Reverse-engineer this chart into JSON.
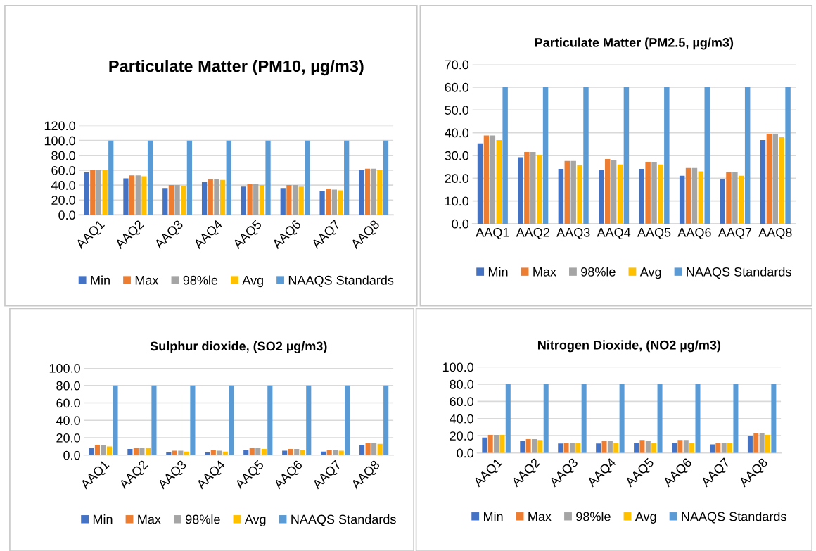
{
  "chart_data": [
    {
      "type": "bar",
      "title": "Particulate Matter (PM10, µg/m3)",
      "categories": [
        "AAQ1",
        "AAQ2",
        "AAQ3",
        "AAQ4",
        "AAQ5",
        "AAQ6",
        "AAQ7",
        "AAQ8"
      ],
      "series": [
        {
          "name": "Min",
          "color": "#4472c4",
          "values": [
            57,
            49,
            36,
            44,
            38,
            36,
            32,
            61
          ]
        },
        {
          "name": "Max",
          "color": "#ed7d31",
          "values": [
            61,
            53,
            40,
            48,
            41,
            40,
            35,
            62
          ]
        },
        {
          "name": "98%le",
          "color": "#a5a5a5",
          "values": [
            61,
            53,
            40,
            48,
            41,
            40,
            34,
            62
          ]
        },
        {
          "name": "Avg",
          "color": "#ffc000",
          "values": [
            60,
            52,
            39,
            47,
            40,
            38,
            33,
            61
          ]
        },
        {
          "name": "NAAQS Standards",
          "color": "#5b9bd5",
          "values": [
            100,
            100,
            100,
            100,
            100,
            100,
            100,
            100
          ]
        }
      ],
      "ylim": [
        0,
        120
      ],
      "yticks": [
        {
          "value": 0,
          "label": "0.0"
        },
        {
          "value": 20,
          "label": "20.0"
        },
        {
          "value": 40,
          "label": "40.0"
        },
        {
          "value": 60,
          "label": "60.0"
        },
        {
          "value": 80,
          "label": "80.0"
        },
        {
          "value": 100,
          "label": "100.0"
        },
        {
          "value": 120,
          "label": "120.0"
        }
      ],
      "grid": "y",
      "legend": "bottom"
    },
    {
      "type": "bar",
      "title": "Particulate Matter (PM2.5, µg/m3)",
      "categories": [
        "AAQ1",
        "AAQ2",
        "AAQ3",
        "AAQ4",
        "AAQ5",
        "AAQ6",
        "AAQ7",
        "AAQ8"
      ],
      "series": [
        {
          "name": "Min",
          "color": "#4472c4",
          "values": [
            35.3,
            29.2,
            24.1,
            23.8,
            24.1,
            21.1,
            19.6,
            36.8
          ]
        },
        {
          "name": "Max",
          "color": "#ed7d31",
          "values": [
            38.8,
            31.5,
            27.6,
            28.4,
            27.2,
            24.5,
            22.6,
            39.6
          ]
        },
        {
          "name": "98%le",
          "color": "#a5a5a5",
          "values": [
            38.8,
            31.5,
            27.6,
            28.0,
            27.2,
            24.5,
            22.6,
            39.6
          ]
        },
        {
          "name": "Avg",
          "color": "#ffc000",
          "values": [
            36.8,
            30.3,
            25.7,
            26.0,
            26.0,
            23.0,
            21.1,
            38.0
          ]
        },
        {
          "name": "NAAQS Standards",
          "color": "#5b9bd5",
          "values": [
            60,
            60,
            60,
            60,
            60,
            60,
            60,
            60
          ]
        }
      ],
      "ylim": [
        0,
        70
      ],
      "yticks": [
        {
          "value": 0,
          "label": "0.0"
        },
        {
          "value": 10,
          "label": "10.0"
        },
        {
          "value": 20,
          "label": "20.0"
        },
        {
          "value": 30,
          "label": "30.0"
        },
        {
          "value": 40,
          "label": "40.0"
        },
        {
          "value": 50,
          "label": "50.0"
        },
        {
          "value": 60,
          "label": "60.0"
        },
        {
          "value": 70,
          "label": "70.0"
        }
      ],
      "grid": "y",
      "legend": "bottom"
    },
    {
      "type": "bar",
      "title": "Sulphur dioxide, (SO2 µg/m3)",
      "categories": [
        "AAQ1",
        "AAQ2",
        "AAQ3",
        "AAQ4",
        "AAQ5",
        "AAQ6",
        "AAQ7",
        "AAQ8"
      ],
      "series": [
        {
          "name": "Min",
          "color": "#4472c4",
          "values": [
            8,
            7,
            3,
            3,
            6,
            5,
            4,
            12
          ]
        },
        {
          "name": "Max",
          "color": "#ed7d31",
          "values": [
            12,
            8,
            5,
            6,
            8,
            7,
            6,
            14
          ]
        },
        {
          "name": "98%le",
          "color": "#a5a5a5",
          "values": [
            12,
            8,
            5,
            5,
            8,
            7,
            6,
            14
          ]
        },
        {
          "name": "Avg",
          "color": "#ffc000",
          "values": [
            10,
            8,
            4,
            4,
            7,
            6,
            5,
            13
          ]
        },
        {
          "name": "NAAQS Standards",
          "color": "#5b9bd5",
          "values": [
            80,
            80,
            80,
            80,
            80,
            80,
            80,
            80
          ]
        }
      ],
      "ylim": [
        0,
        100
      ],
      "yticks": [
        {
          "value": 0,
          "label": "0.0"
        },
        {
          "value": 20,
          "label": "20.0"
        },
        {
          "value": 40,
          "label": "40.0"
        },
        {
          "value": 60,
          "label": "60.0"
        },
        {
          "value": 80,
          "label": "80.0"
        },
        {
          "value": 100,
          "label": "100.0"
        }
      ],
      "grid": "y",
      "legend": "bottom"
    },
    {
      "type": "bar",
      "title": "Nitrogen Dioxide, (NO2 µg/m3)",
      "categories": [
        "AAQ1",
        "AAQ2",
        "AAQ3",
        "AAQ4",
        "AAQ5",
        "AAQ6",
        "AAQ7",
        "AAQ8"
      ],
      "series": [
        {
          "name": "Min",
          "color": "#4472c4",
          "values": [
            18,
            14,
            11,
            11,
            12,
            12,
            10,
            20
          ]
        },
        {
          "name": "Max",
          "color": "#ed7d31",
          "values": [
            21,
            16,
            12,
            14,
            15,
            15,
            12,
            23
          ]
        },
        {
          "name": "98%le",
          "color": "#a5a5a5",
          "values": [
            21,
            16,
            12,
            14,
            14,
            15,
            12,
            23
          ]
        },
        {
          "name": "Avg",
          "color": "#ffc000",
          "values": [
            21,
            15,
            12,
            12,
            12,
            12,
            12,
            21
          ]
        },
        {
          "name": "NAAQS Standards",
          "color": "#5b9bd5",
          "values": [
            80,
            80,
            80,
            80,
            80,
            80,
            80,
            80
          ]
        }
      ],
      "ylim": [
        0,
        100
      ],
      "yticks": [
        {
          "value": 0,
          "label": "0.0"
        },
        {
          "value": 20,
          "label": "20.0"
        },
        {
          "value": 40,
          "label": "40.0"
        },
        {
          "value": 60,
          "label": "60.0"
        },
        {
          "value": 80,
          "label": "80.0"
        },
        {
          "value": 100,
          "label": "100.0"
        }
      ],
      "grid": "y",
      "legend": "bottom"
    }
  ]
}
